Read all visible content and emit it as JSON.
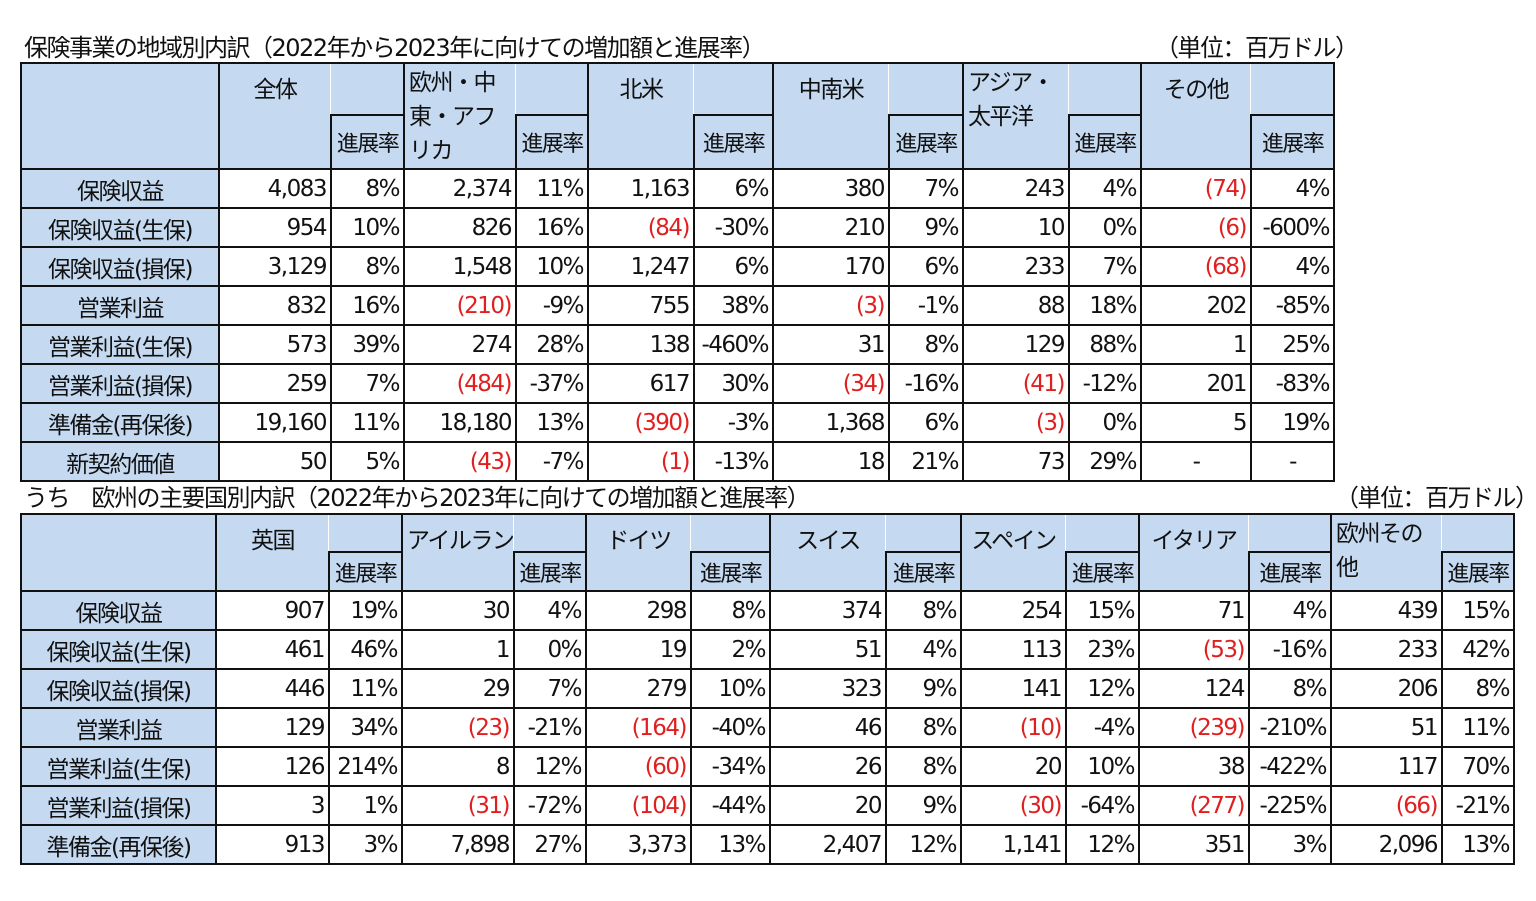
{
  "table1": {
    "title": "保険事業の地域別内訳（2022年から2023年に向けての増加額と進展率）",
    "unit": "（単位：百万ドル）",
    "rate_label": "進展率",
    "regions": [
      "全体",
      "欧州・中東・アフリカ",
      "北米",
      "中南米",
      "アジア・太平洋",
      "その他"
    ],
    "rows": [
      {
        "label": "保険収益",
        "values": [
          "4,083",
          "8%",
          "2,374",
          "11%",
          "1,163",
          "6%",
          "380",
          "7%",
          "243",
          "4%",
          "(74)",
          "4%"
        ]
      },
      {
        "label": "保険収益(生保)",
        "values": [
          "954",
          "10%",
          "826",
          "16%",
          "(84)",
          "-30%",
          "210",
          "9%",
          "10",
          "0%",
          "(6)",
          "-600%"
        ]
      },
      {
        "label": "保険収益(損保)",
        "values": [
          "3,129",
          "8%",
          "1,548",
          "10%",
          "1,247",
          "6%",
          "170",
          "6%",
          "233",
          "7%",
          "(68)",
          "4%"
        ]
      },
      {
        "label": "営業利益",
        "values": [
          "832",
          "16%",
          "(210)",
          "-9%",
          "755",
          "38%",
          "(3)",
          "-1%",
          "88",
          "18%",
          "202",
          "-85%"
        ]
      },
      {
        "label": "営業利益(生保)",
        "values": [
          "573",
          "39%",
          "274",
          "28%",
          "138",
          "-460%",
          "31",
          "8%",
          "129",
          "88%",
          "1",
          "25%"
        ]
      },
      {
        "label": "営業利益(損保)",
        "values": [
          "259",
          "7%",
          "(484)",
          "-37%",
          "617",
          "30%",
          "(34)",
          "-16%",
          "(41)",
          "-12%",
          "201",
          "-83%"
        ]
      },
      {
        "label": "準備金(再保後)",
        "values": [
          "19,160",
          "11%",
          "18,180",
          "13%",
          "(390)",
          "-3%",
          "1,368",
          "6%",
          "(3)",
          "0%",
          "5",
          "19%"
        ]
      },
      {
        "label": "新契約価値",
        "values": [
          "50",
          "5%",
          "(43)",
          "-7%",
          "(1)",
          "-13%",
          "18",
          "21%",
          "73",
          "29%",
          "-",
          "-"
        ]
      }
    ]
  },
  "table2": {
    "title": "うち　欧州の主要国別内訳（2022年から2023年に向けての増加額と進展率）",
    "unit": "（単位：百万ドル）",
    "rate_label": "進展率",
    "regions": [
      "英国",
      "アイルランド",
      "ドイツ",
      "スイス",
      "スペイン",
      "イタリア",
      "欧州その他"
    ],
    "rows": [
      {
        "label": "保険収益",
        "values": [
          "907",
          "19%",
          "30",
          "4%",
          "298",
          "8%",
          "374",
          "8%",
          "254",
          "15%",
          "71",
          "4%",
          "439",
          "15%"
        ]
      },
      {
        "label": "保険収益(生保)",
        "values": [
          "461",
          "46%",
          "1",
          "0%",
          "19",
          "2%",
          "51",
          "4%",
          "113",
          "23%",
          "(53)",
          "-16%",
          "233",
          "42%"
        ]
      },
      {
        "label": "保険収益(損保)",
        "values": [
          "446",
          "11%",
          "29",
          "7%",
          "279",
          "10%",
          "323",
          "9%",
          "141",
          "12%",
          "124",
          "8%",
          "206",
          "8%"
        ]
      },
      {
        "label": "営業利益",
        "values": [
          "129",
          "34%",
          "(23)",
          "-21%",
          "(164)",
          "-40%",
          "46",
          "8%",
          "(10)",
          "-4%",
          "(239)",
          "-210%",
          "51",
          "11%"
        ]
      },
      {
        "label": "営業利益(生保)",
        "values": [
          "126",
          "214%",
          "8",
          "12%",
          "(60)",
          "-34%",
          "26",
          "8%",
          "20",
          "10%",
          "38",
          "-422%",
          "117",
          "70%"
        ]
      },
      {
        "label": "営業利益(損保)",
        "values": [
          "3",
          "1%",
          "(31)",
          "-72%",
          "(104)",
          "-44%",
          "20",
          "9%",
          "(30)",
          "-64%",
          "(277)",
          "-225%",
          "(66)",
          "-21%"
        ]
      },
      {
        "label": "準備金(再保後)",
        "values": [
          "913",
          "3%",
          "7,898",
          "27%",
          "3,373",
          "13%",
          "2,407",
          "12%",
          "1,141",
          "12%",
          "351",
          "3%",
          "2,096",
          "13%"
        ]
      }
    ]
  },
  "colors": {
    "header_bg": "#c5d9f1",
    "negative": "#e02020"
  }
}
